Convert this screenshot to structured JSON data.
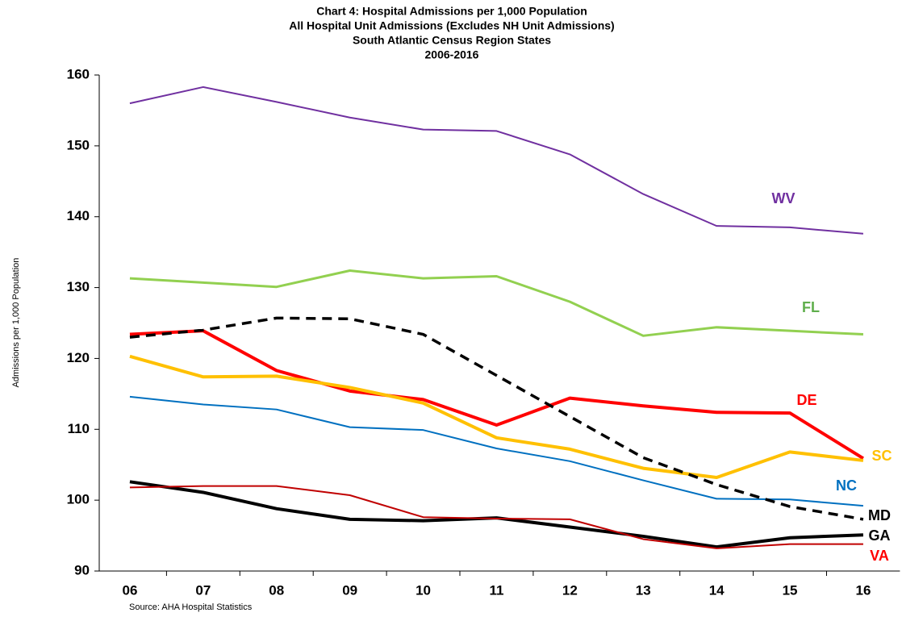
{
  "chart_data": {
    "type": "line",
    "title": [
      "Chart 4:  Hospital Admissions per 1,000 Population",
      "All Hospital Unit Admissions (Excludes NH Unit Admissions)",
      "South Atlantic Census Region States",
      "2006-2016"
    ],
    "y_label": "Admissions per 1,000 Population",
    "source": "Source: AHA Hospital Statistics",
    "categories": [
      "06",
      "07",
      "08",
      "09",
      "10",
      "11",
      "12",
      "13",
      "14",
      "15",
      "16"
    ],
    "ylim": [
      90,
      160
    ],
    "yticks": [
      90,
      100,
      110,
      120,
      130,
      140,
      150,
      160
    ],
    "grid": false,
    "series": [
      {
        "name": "WV",
        "color": "#7030a0",
        "values": [
          156,
          158.3,
          156.2,
          154,
          152.3,
          152.1,
          148.8,
          143.2,
          138.7,
          138.5,
          137.6
        ]
      },
      {
        "name": "FL",
        "color": "#92d050",
        "values": [
          131.3,
          130.7,
          130.1,
          132.4,
          131.3,
          131.6,
          128,
          123.2,
          124.4,
          123.9,
          123.4
        ]
      },
      {
        "name": "DE",
        "color": "#ff0000",
        "values": [
          123.4,
          123.9,
          118.3,
          115.4,
          114.2,
          110.6,
          114.4,
          113.3,
          112.4,
          112.3,
          105.9
        ]
      },
      {
        "name": "SC",
        "color": "#ffc000",
        "values": [
          120.3,
          117.4,
          117.5,
          115.9,
          113.7,
          108.8,
          107.2,
          104.5,
          103.2,
          106.8,
          105.6
        ]
      },
      {
        "name": "NC",
        "color": "#0070c0",
        "values": [
          114.6,
          113.5,
          112.8,
          110.3,
          109.9,
          107.3,
          105.5,
          102.8,
          100.2,
          100.1,
          99.2
        ]
      },
      {
        "name": "MD",
        "color": "#000000",
        "dashed": true,
        "values": [
          123,
          124,
          125.7,
          125.6,
          123.4,
          117.6,
          111.8,
          106,
          102.2,
          99.1,
          97.3
        ]
      },
      {
        "name": "GA",
        "color": "#000000",
        "values": [
          102.6,
          101.1,
          98.8,
          97.3,
          97.1,
          97.5,
          96.2,
          94.9,
          93.4,
          94.7,
          95.1
        ]
      },
      {
        "name": "VA",
        "color": "#c00000",
        "values": [
          101.8,
          102,
          102,
          100.7,
          97.6,
          97.4,
          97.3,
          94.5,
          93.2,
          93.8,
          93.8
        ]
      }
    ]
  }
}
